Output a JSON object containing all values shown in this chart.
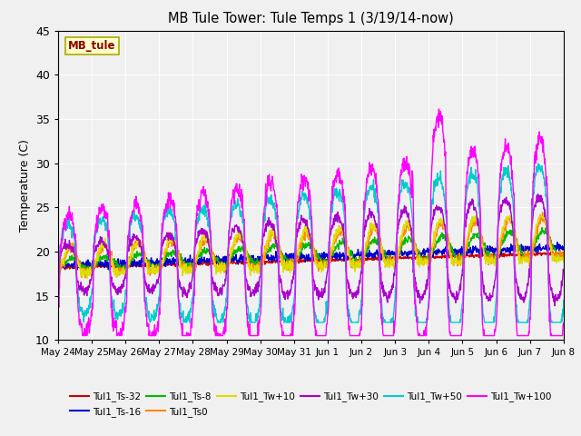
{
  "title": "MB Tule Tower: Tule Temps 1 (3/19/14-now)",
  "ylabel": "Temperature (C)",
  "ylim": [
    10,
    45
  ],
  "facecolor": "#f0f0f0",
  "watermark_text": "MB_tule",
  "x_tick_labels": [
    "May 24",
    "May 25",
    "May 26",
    "May 27",
    "May 28",
    "May 29",
    "May 30",
    "May 31",
    "Jun 1",
    "Jun 2",
    "Jun 3",
    "Jun 4",
    "Jun 5",
    "Jun 6",
    "Jun 7",
    "Jun 8"
  ],
  "yticks": [
    10,
    15,
    20,
    25,
    30,
    35,
    40,
    45
  ],
  "series_order": [
    "Tul1_Ts-32",
    "Tul1_Ts-16",
    "Tul1_Ts-8",
    "Tul1_Ts0",
    "Tul1_Tw+10",
    "Tul1_Tw+30",
    "Tul1_Tw+50",
    "Tul1_Tw+100"
  ],
  "series_colors": {
    "Tul1_Ts-32": "#cc0000",
    "Tul1_Ts-16": "#0000cc",
    "Tul1_Ts-8": "#00bb00",
    "Tul1_Ts0": "#ff8800",
    "Tul1_Tw+10": "#dddd00",
    "Tul1_Tw+30": "#aa00cc",
    "Tul1_Tw+50": "#00cccc",
    "Tul1_Tw+100": "#ff00ff"
  },
  "lw": 1.0,
  "n_points": 1440,
  "n_days": 15
}
